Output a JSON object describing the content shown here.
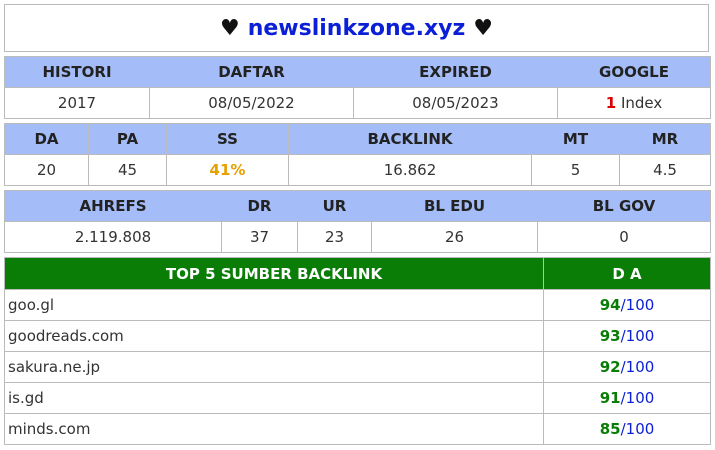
{
  "title": {
    "heart_left": "♥",
    "domain": "newslinkzone.xyz",
    "heart_right": "♥"
  },
  "row1": {
    "headers": [
      "HISTORI",
      "DAFTAR",
      "EXPIRED",
      "GOOGLE"
    ],
    "values": {
      "histori": "2017",
      "daftar": "08/05/2022",
      "expired": "08/05/2023",
      "google_count": "1",
      "google_label": "Index"
    }
  },
  "row2": {
    "headers": [
      "DA",
      "PA",
      "SS",
      "BACKLINK",
      "MT",
      "MR"
    ],
    "values": {
      "da": "20",
      "pa": "45",
      "ss": "41%",
      "backlink": "16.862",
      "mt": "5",
      "mr": "4.5"
    }
  },
  "row3": {
    "headers": [
      "AHREFS",
      "DR",
      "UR",
      "BL EDU",
      "BL GOV"
    ],
    "values": {
      "ahrefs": "2.119.808",
      "dr": "37",
      "ur": "23",
      "bl_edu": "26",
      "bl_gov": "0"
    }
  },
  "top_backlinks": {
    "header_source": "TOP 5 SUMBER BACKLINK",
    "header_da": "D A",
    "max": "/100",
    "items": [
      {
        "site": "goo.gl",
        "da": "94"
      },
      {
        "site": "goodreads.com",
        "da": "93"
      },
      {
        "site": "sakura.ne.jp",
        "da": "92"
      },
      {
        "site": "is.gd",
        "da": "91"
      },
      {
        "site": "minds.com",
        "da": "85"
      }
    ]
  },
  "colors": {
    "header_bg": "#a4bdf8",
    "green": "#0a7d07",
    "blue": "#0a1fd6",
    "red": "#dd0000",
    "orange": "#e6a000"
  }
}
